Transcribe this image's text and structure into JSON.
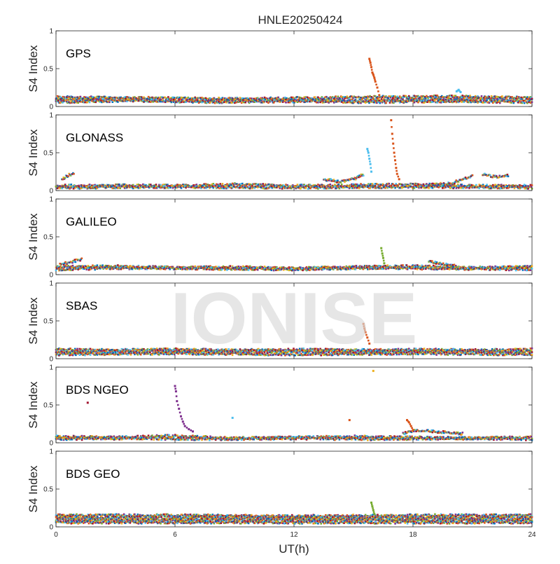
{
  "chart_data": {
    "type": "scatter",
    "title": "HNLE20250424",
    "xlabel": "UT(h)",
    "ylabel": "S4 Index",
    "xlim": [
      0,
      24
    ],
    "ylim": [
      0,
      1
    ],
    "xticks": [
      "0",
      "6",
      "12",
      "18",
      "24"
    ],
    "yticks": [
      "0",
      "0.5",
      "1"
    ],
    "grid": false,
    "watermark": "IONISE",
    "series_colors": [
      "#0072BD",
      "#D95319",
      "#EDB120",
      "#7E2F8E",
      "#77AC30",
      "#4DBEEE",
      "#A2142F"
    ],
    "panels": [
      {
        "name": "GPS",
        "baseline": [
          {
            "x": [
              0,
              3,
              6,
              9,
              12,
              15,
              18,
              21,
              24
            ],
            "y": [
              0.09,
              0.1,
              0.07,
              0.09,
              0.08,
              0.08,
              0.09,
              0.1,
              0.09
            ]
          },
          {
            "x": [
              0,
              4,
              8,
              12,
              16,
              20,
              24
            ],
            "y": [
              0.06,
              0.08,
              0.06,
              0.07,
              0.06,
              0.07,
              0.06
            ]
          },
          {
            "x": [
              0,
              5,
              10,
              15,
              20,
              24
            ],
            "y": [
              0.12,
              0.11,
              0.1,
              0.12,
              0.13,
              0.11
            ]
          }
        ],
        "events": [
          {
            "x": [
              15.8,
              15.85,
              15.9,
              15.95,
              16.0,
              16.05,
              16.1,
              16.2,
              16.3
            ],
            "y": [
              0.63,
              0.58,
              0.52,
              0.45,
              0.42,
              0.38,
              0.33,
              0.25,
              0.15
            ],
            "color": "#D95319"
          },
          {
            "x": [
              20.2,
              20.3,
              20.4
            ],
            "y": [
              0.2,
              0.22,
              0.19
            ],
            "color": "#4DBEEE"
          }
        ]
      },
      {
        "name": "GLONASS",
        "baseline": [
          {
            "x": [
              0,
              3,
              6,
              9,
              12,
              15,
              18,
              21,
              24
            ],
            "y": [
              0.06,
              0.07,
              0.06,
              0.08,
              0.06,
              0.07,
              0.08,
              0.06,
              0.06
            ]
          },
          {
            "x": [
              0,
              6,
              12,
              18,
              24
            ],
            "y": [
              0.04,
              0.05,
              0.04,
              0.05,
              0.04
            ]
          },
          {
            "x": [
              0.3,
              0.6,
              0.9
            ],
            "y": [
              0.15,
              0.2,
              0.23
            ]
          },
          {
            "x": [
              13.5,
              14.3,
              15.0,
              15.5
            ],
            "y": [
              0.15,
              0.12,
              0.15,
              0.21
            ]
          },
          {
            "x": [
              19.0,
              20.0,
              21.0
            ],
            "y": [
              0.08,
              0.1,
              0.2
            ]
          },
          {
            "x": [
              21.5,
              22.2,
              22.8
            ],
            "y": [
              0.22,
              0.18,
              0.2
            ]
          }
        ],
        "events": [
          {
            "x": [
              15.7,
              15.75,
              15.8,
              15.85,
              15.9
            ],
            "y": [
              0.55,
              0.5,
              0.42,
              0.35,
              0.25
            ],
            "color": "#4DBEEE"
          },
          {
            "x": [
              16.9,
              16.95,
              17.0,
              17.05,
              17.1,
              17.15,
              17.2,
              17.3
            ],
            "y": [
              0.93,
              0.75,
              0.62,
              0.5,
              0.4,
              0.3,
              0.22,
              0.15
            ],
            "color": "#D95319"
          }
        ]
      },
      {
        "name": "GALILEO",
        "baseline": [
          {
            "x": [
              0,
              3,
              6,
              9,
              12,
              15,
              18,
              21,
              24
            ],
            "y": [
              0.1,
              0.11,
              0.09,
              0.1,
              0.08,
              0.1,
              0.11,
              0.09,
              0.1
            ]
          },
          {
            "x": [
              0,
              4,
              8,
              12,
              16,
              20,
              24
            ],
            "y": [
              0.07,
              0.09,
              0.08,
              0.07,
              0.09,
              0.08,
              0.07
            ]
          },
          {
            "x": [
              0.2,
              0.8,
              1.3
            ],
            "y": [
              0.13,
              0.17,
              0.2
            ]
          },
          {
            "x": [
              18.8,
              19.5,
              20.2
            ],
            "y": [
              0.18,
              0.14,
              0.11
            ]
          }
        ],
        "events": [
          {
            "x": [
              16.4,
              16.45,
              16.5,
              16.55
            ],
            "y": [
              0.35,
              0.28,
              0.22,
              0.15
            ],
            "color": "#77AC30"
          }
        ]
      },
      {
        "name": "SBAS",
        "baseline": [
          {
            "x": [
              0,
              3,
              6,
              9,
              12,
              15,
              18,
              21,
              24
            ],
            "y": [
              0.12,
              0.11,
              0.12,
              0.11,
              0.12,
              0.11,
              0.12,
              0.11,
              0.12
            ]
          },
          {
            "x": [
              0,
              4,
              8,
              12,
              16,
              20,
              24
            ],
            "y": [
              0.09,
              0.1,
              0.09,
              0.1,
              0.09,
              0.1,
              0.09
            ]
          },
          {
            "x": [
              0,
              6,
              12,
              18,
              24
            ],
            "y": [
              0.06,
              0.07,
              0.06,
              0.07,
              0.06
            ]
          }
        ],
        "events": [
          {
            "x": [
              15.5,
              15.55,
              15.6,
              15.7,
              15.8
            ],
            "y": [
              0.46,
              0.4,
              0.35,
              0.28,
              0.2
            ],
            "color": "#D95319"
          }
        ]
      },
      {
        "name": "BDS NGEO",
        "baseline": [
          {
            "x": [
              0,
              3,
              6,
              9,
              12,
              15,
              18,
              21,
              24
            ],
            "y": [
              0.08,
              0.07,
              0.09,
              0.06,
              0.07,
              0.08,
              0.07,
              0.06,
              0.07
            ]
          },
          {
            "x": [
              0,
              4,
              8,
              12,
              16,
              20,
              24
            ],
            "y": [
              0.05,
              0.06,
              0.05,
              0.06,
              0.05,
              0.06,
              0.05
            ]
          },
          {
            "x": [
              17.5,
              18.0,
              18.5,
              19.5,
              20.5
            ],
            "y": [
              0.12,
              0.15,
              0.17,
              0.14,
              0.12
            ]
          }
        ],
        "events": [
          {
            "x": [
              6.0,
              6.05,
              6.1,
              6.2,
              6.3,
              6.4,
              6.5,
              6.7,
              6.9
            ],
            "y": [
              0.75,
              0.68,
              0.55,
              0.45,
              0.35,
              0.28,
              0.22,
              0.18,
              0.15
            ],
            "color": "#7E2F8E"
          },
          {
            "x": [
              17.7,
              17.8,
              17.9,
              18.0
            ],
            "y": [
              0.3,
              0.27,
              0.22,
              0.17
            ],
            "color": "#D95319"
          },
          {
            "x": [
              1.6
            ],
            "y": [
              0.53
            ],
            "color": "#A2142F"
          },
          {
            "x": [
              8.9
            ],
            "y": [
              0.33
            ],
            "color": "#4DBEEE"
          },
          {
            "x": [
              14.8
            ],
            "y": [
              0.3
            ],
            "color": "#D95319"
          },
          {
            "x": [
              16.0
            ],
            "y": [
              0.95
            ],
            "color": "#EDB120"
          }
        ]
      },
      {
        "name": "BDS GEO",
        "baseline": [
          {
            "x": [
              0,
              6,
              12,
              18,
              24
            ],
            "y": [
              0.15,
              0.15,
              0.14,
              0.15,
              0.15
            ]
          },
          {
            "x": [
              0,
              6,
              12,
              18,
              24
            ],
            "y": [
              0.12,
              0.12,
              0.12,
              0.12,
              0.12
            ]
          },
          {
            "x": [
              0,
              6,
              12,
              18,
              24
            ],
            "y": [
              0.09,
              0.09,
              0.09,
              0.09,
              0.09
            ]
          },
          {
            "x": [
              0,
              6,
              12,
              18,
              24
            ],
            "y": [
              0.06,
              0.06,
              0.06,
              0.06,
              0.06
            ]
          }
        ],
        "events": [
          {
            "x": [
              15.9,
              15.95,
              16.0,
              16.05
            ],
            "y": [
              0.32,
              0.27,
              0.22,
              0.17
            ],
            "color": "#77AC30"
          }
        ]
      }
    ]
  }
}
